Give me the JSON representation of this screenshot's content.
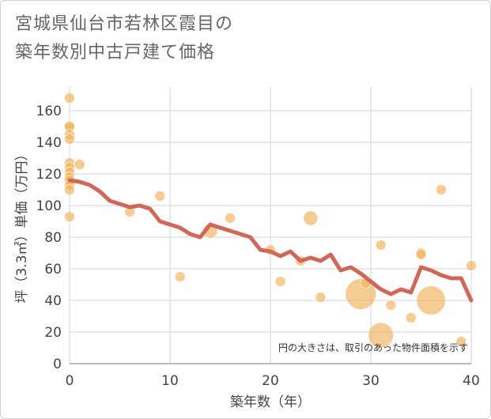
{
  "chart_data": {
    "type": "scatter",
    "title_lines": [
      "宮城県仙台市若林区霞目の",
      "築年数別中古戸建て価格"
    ],
    "xlabel": "築年数（年）",
    "ylabel": "坪（3.3㎡）単価（万円）",
    "xlim": [
      0,
      40
    ],
    "ylim": [
      0,
      175
    ],
    "xticks": [
      0,
      10,
      20,
      30,
      40
    ],
    "yticks": [
      0,
      20,
      40,
      60,
      80,
      100,
      120,
      140,
      160
    ],
    "note": "円の大きさは、取引のあった物件面積を示す",
    "colors": {
      "bubble": "#f0b25a",
      "line": "#d0685a",
      "grid": "#ccd6e0"
    },
    "bubbles": [
      {
        "x": 0,
        "y": 168,
        "size": 1
      },
      {
        "x": 0,
        "y": 150,
        "size": 1
      },
      {
        "x": 0,
        "y": 150,
        "size": 1
      },
      {
        "x": 0,
        "y": 145,
        "size": 1
      },
      {
        "x": 0,
        "y": 142,
        "size": 1
      },
      {
        "x": 0,
        "y": 127,
        "size": 1
      },
      {
        "x": 0,
        "y": 124,
        "size": 1
      },
      {
        "x": 0,
        "y": 121,
        "size": 1
      },
      {
        "x": 0,
        "y": 118,
        "size": 1
      },
      {
        "x": 0,
        "y": 116,
        "size": 1
      },
      {
        "x": 0,
        "y": 113,
        "size": 1
      },
      {
        "x": 0,
        "y": 110,
        "size": 1
      },
      {
        "x": 0,
        "y": 93,
        "size": 1
      },
      {
        "x": 1,
        "y": 126,
        "size": 1
      },
      {
        "x": 6,
        "y": 96,
        "size": 1
      },
      {
        "x": 9,
        "y": 106,
        "size": 1
      },
      {
        "x": 11,
        "y": 55,
        "size": 1
      },
      {
        "x": 14,
        "y": 84,
        "size": 2
      },
      {
        "x": 16,
        "y": 92,
        "size": 1
      },
      {
        "x": 20,
        "y": 72,
        "size": 1
      },
      {
        "x": 21,
        "y": 52,
        "size": 1
      },
      {
        "x": 23,
        "y": 65,
        "size": 1
      },
      {
        "x": 24,
        "y": 92,
        "size": 2
      },
      {
        "x": 25,
        "y": 42,
        "size": 1
      },
      {
        "x": 29,
        "y": 44,
        "size": 9
      },
      {
        "x": 29.5,
        "y": 51,
        "size": 1
      },
      {
        "x": 31,
        "y": 75,
        "size": 1
      },
      {
        "x": 31,
        "y": 18,
        "size": 6
      },
      {
        "x": 32,
        "y": 37,
        "size": 1
      },
      {
        "x": 34,
        "y": 29,
        "size": 1
      },
      {
        "x": 35,
        "y": 70,
        "size": 1
      },
      {
        "x": 35,
        "y": 69,
        "size": 1
      },
      {
        "x": 36,
        "y": 40,
        "size": 8
      },
      {
        "x": 37,
        "y": 110,
        "size": 1
      },
      {
        "x": 39,
        "y": 14,
        "size": 1
      },
      {
        "x": 40,
        "y": 62,
        "size": 1
      }
    ],
    "trend": [
      {
        "x": 0,
        "y": 116
      },
      {
        "x": 1,
        "y": 115
      },
      {
        "x": 2,
        "y": 113
      },
      {
        "x": 3,
        "y": 109
      },
      {
        "x": 4,
        "y": 103
      },
      {
        "x": 5,
        "y": 101
      },
      {
        "x": 6,
        "y": 99
      },
      {
        "x": 7,
        "y": 100
      },
      {
        "x": 8,
        "y": 98
      },
      {
        "x": 9,
        "y": 90
      },
      {
        "x": 10,
        "y": 88
      },
      {
        "x": 11,
        "y": 86
      },
      {
        "x": 12,
        "y": 82
      },
      {
        "x": 13,
        "y": 80
      },
      {
        "x": 14,
        "y": 88
      },
      {
        "x": 15,
        "y": 86
      },
      {
        "x": 16,
        "y": 84
      },
      {
        "x": 17,
        "y": 82
      },
      {
        "x": 18,
        "y": 80
      },
      {
        "x": 19,
        "y": 72
      },
      {
        "x": 20,
        "y": 71
      },
      {
        "x": 21,
        "y": 68
      },
      {
        "x": 22,
        "y": 71
      },
      {
        "x": 23,
        "y": 65
      },
      {
        "x": 24,
        "y": 67
      },
      {
        "x": 25,
        "y": 65
      },
      {
        "x": 26,
        "y": 69
      },
      {
        "x": 27,
        "y": 59
      },
      {
        "x": 28,
        "y": 61
      },
      {
        "x": 29,
        "y": 57
      },
      {
        "x": 30,
        "y": 52
      },
      {
        "x": 31,
        "y": 47
      },
      {
        "x": 32,
        "y": 44
      },
      {
        "x": 33,
        "y": 47
      },
      {
        "x": 34,
        "y": 45
      },
      {
        "x": 35,
        "y": 61
      },
      {
        "x": 36,
        "y": 59
      },
      {
        "x": 37,
        "y": 56
      },
      {
        "x": 38,
        "y": 54
      },
      {
        "x": 39,
        "y": 54
      },
      {
        "x": 40,
        "y": 40
      }
    ]
  }
}
